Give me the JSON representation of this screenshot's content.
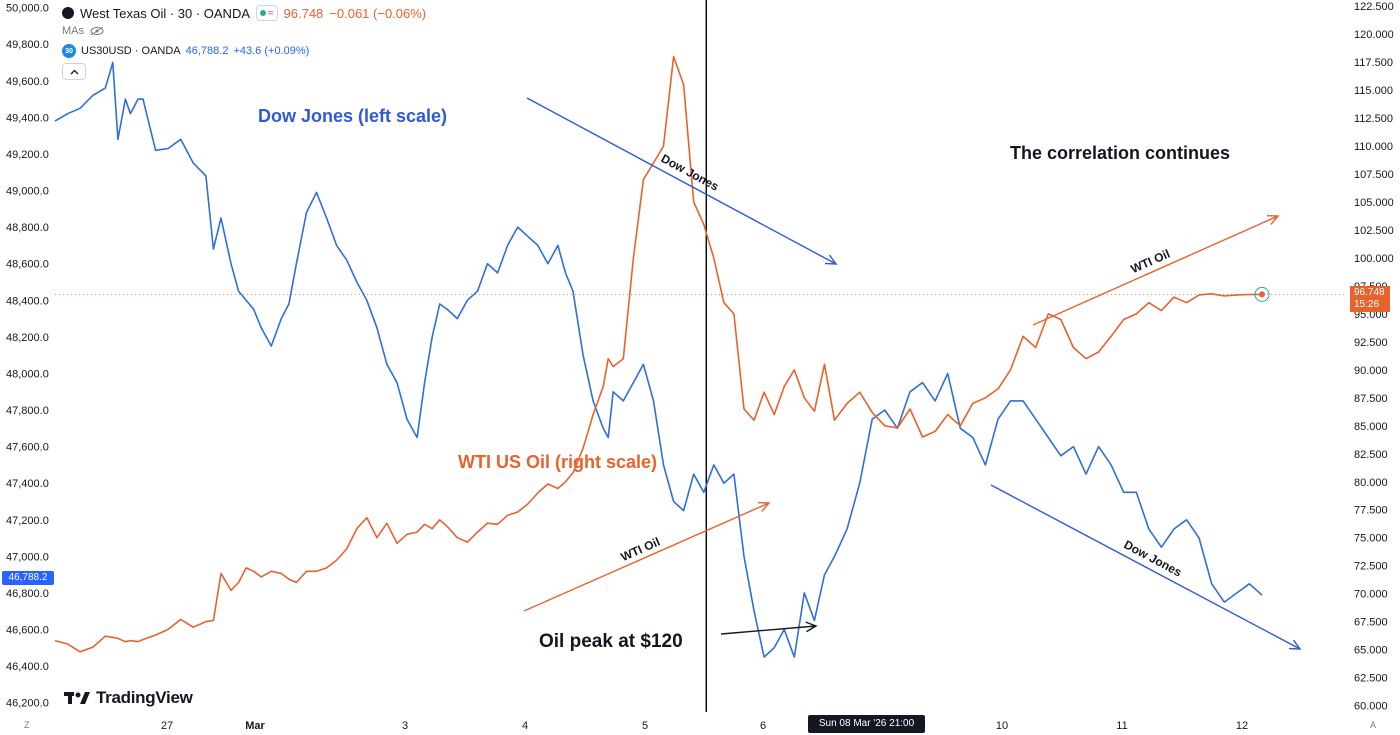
{
  "header": {
    "main_title": "West Texas Oil · 30 · OANDA",
    "main_price": "96.748",
    "main_change": "−0.061 (−0.06%)",
    "mas_label": "MAs",
    "compare_symbol_badge": "30",
    "compare_title": "US30USD · OANDA",
    "compare_value": "46,788.2",
    "compare_change": "+43.6 (+0.09%)",
    "collapse_icon": "chevron-up-icon",
    "badge_icons": [
      "green-dot-icon",
      "approx-icon"
    ],
    "mas_icon": "eye-off-icon"
  },
  "logo_text": "TradingView",
  "price_labels": {
    "left_current": "46,788.2",
    "right_price": "96.748",
    "right_countdown": "15:26"
  },
  "crosshair_label": "Sun 08 Mar '26   21:00",
  "corner_left": "Z",
  "corner_right": "A",
  "annotations": {
    "dow_scale": "Dow Jones (left scale)",
    "wti_scale": "WTI US Oil (right scale)",
    "correlation": "The correlation continues",
    "oil_peak": "Oil peak at $120",
    "arrow_dow_1": "Dow Jones",
    "arrow_wti_1": "WTI Oil",
    "arrow_wti_2": "WTI Oil",
    "arrow_dow_2": "Dow Jones"
  },
  "colors": {
    "dow": "#2f6fd8",
    "wti": "#e8622c",
    "crosshair": "#000000",
    "grid_dotted": "#e8622c",
    "text": "#131722"
  },
  "chart_data": {
    "type": "line",
    "x_ticks": [
      "27",
      "Mar",
      "3",
      "4",
      "5",
      "6",
      "10",
      "11",
      "12"
    ],
    "y_left": {
      "ticks": [
        "50,000.0",
        "49,800.0",
        "49,600.0",
        "49,400.0",
        "49,200.0",
        "49,000.0",
        "48,800.0",
        "48,600.0",
        "48,400.0",
        "48,200.0",
        "48,000.0",
        "47,800.0",
        "47,600.0",
        "47,400.0",
        "47,200.0",
        "47,000.0",
        "46,800.0",
        "46,600.0",
        "46,400.0",
        "46,200.0"
      ],
      "range": [
        46160,
        50020
      ]
    },
    "y_right": {
      "ticks": [
        "122.500",
        "120.000",
        "117.500",
        "115.000",
        "112.500",
        "110.000",
        "107.500",
        "105.000",
        "102.500",
        "100.000",
        "97.500",
        "95.000",
        "92.500",
        "90.000",
        "87.500",
        "85.000",
        "82.500",
        "80.000",
        "77.500",
        "75.000",
        "72.500",
        "70.000",
        "67.500",
        "65.000",
        "62.500",
        "60.000"
      ],
      "range": [
        59.6,
        122.7
      ]
    },
    "series": [
      {
        "name": "US30USD · OANDA",
        "axis": "left",
        "x": [
          0,
          0.5,
          1,
          1.5,
          2,
          2.3,
          2.5,
          2.8,
          3,
          3.3,
          3.5,
          4,
          4.5,
          5,
          5.5,
          6,
          6.3,
          6.6,
          7,
          7.3,
          7.6,
          7.9,
          8.2,
          8.6,
          9,
          9.3,
          9.6,
          10,
          10.4,
          10.8,
          11.2,
          11.6,
          12,
          12.4,
          12.8,
          13.2,
          13.6,
          14,
          14.4,
          14.7,
          15,
          15.3,
          15.6,
          16,
          16.4,
          16.8,
          17.2,
          17.6,
          18,
          18.4,
          18.8,
          19.2,
          19.6,
          20,
          20.3,
          20.6,
          21,
          21.4,
          21.8,
          22,
          22.2,
          22.6,
          23,
          23.4,
          23.8,
          24.2,
          24.6,
          25,
          25.4,
          25.8,
          26.2,
          26.6,
          27,
          27.4,
          27.8,
          28.2,
          28.6,
          29,
          29.4,
          29.8,
          30.2,
          30.6,
          31,
          31.5,
          32,
          32.5,
          33,
          33.5,
          34,
          34.5,
          35,
          35.5,
          36,
          36.5,
          37,
          37.5,
          38,
          38.5,
          39,
          39.5,
          40,
          40.5,
          41,
          41.5,
          42,
          42.5,
          43,
          43.5,
          44,
          44.5,
          45,
          45.5,
          46,
          46.5,
          47,
          47.5,
          48
        ],
        "values": [
          49380,
          49420,
          49450,
          49520,
          49560,
          49700,
          49280,
          49500,
          49420,
          49500,
          49500,
          49220,
          49230,
          49280,
          49150,
          49080,
          48680,
          48850,
          48600,
          48450,
          48400,
          48350,
          48250,
          48150,
          48300,
          48380,
          48600,
          48880,
          48990,
          48850,
          48700,
          48620,
          48500,
          48400,
          48250,
          48050,
          47950,
          47750,
          47650,
          47950,
          48200,
          48380,
          48350,
          48300,
          48400,
          48450,
          48600,
          48550,
          48700,
          48800,
          48750,
          48700,
          48600,
          48700,
          48550,
          48450,
          48100,
          47850,
          47700,
          47650,
          47900,
          47850,
          47950,
          48050,
          47850,
          47500,
          47300,
          47250,
          47450,
          47350,
          47500,
          47400,
          47450,
          47000,
          46700,
          46450,
          46500,
          46600,
          46450,
          46800,
          46650,
          46900,
          47000,
          47150,
          47400,
          47750,
          47800,
          47700,
          47900,
          47950,
          47850,
          48000,
          47700,
          47650,
          47500,
          47750,
          47850,
          47850,
          47750,
          47650,
          47550,
          47600,
          47450,
          47600,
          47500,
          47350,
          47350,
          47150,
          47050,
          47150,
          47200,
          47100,
          46850,
          46750,
          46800,
          46850,
          46788
        ]
      },
      {
        "name": "West Texas Oil · 30 · OANDA",
        "axis": "right",
        "x": [
          0,
          0.5,
          1,
          1.5,
          2,
          2.3,
          2.5,
          2.8,
          3,
          3.3,
          3.5,
          4,
          4.5,
          5,
          5.5,
          6,
          6.3,
          6.6,
          7,
          7.3,
          7.6,
          7.9,
          8.2,
          8.6,
          9,
          9.3,
          9.6,
          10,
          10.4,
          10.8,
          11.2,
          11.6,
          12,
          12.4,
          12.8,
          13.2,
          13.6,
          14,
          14.4,
          14.7,
          15,
          15.3,
          15.6,
          16,
          16.4,
          16.8,
          17.2,
          17.6,
          18,
          18.4,
          18.8,
          19.2,
          19.6,
          20,
          20.3,
          20.6,
          21,
          21.4,
          21.8,
          22,
          22.2,
          22.6,
          23,
          23.4,
          23.8,
          24.2,
          24.6,
          25,
          25.4,
          25.8,
          26.2,
          26.6,
          27,
          27.4,
          27.8,
          28.2,
          28.6,
          29,
          29.4,
          29.8,
          30.2,
          30.6,
          31,
          31.5,
          32,
          32.5,
          33,
          33.5,
          34,
          34.5,
          35,
          35.5,
          36,
          36.5,
          37,
          37.5,
          38,
          38.5,
          39,
          39.5,
          40,
          40.5,
          41,
          41.5,
          42,
          42.5,
          43,
          43.5,
          44,
          44.5,
          45,
          45.5,
          46,
          46.5,
          47,
          47.5,
          48
        ],
        "values": [
          65.8,
          65.5,
          64.8,
          65.2,
          66.2,
          66.1,
          66.0,
          65.7,
          65.8,
          65.7,
          65.9,
          66.3,
          66.8,
          67.7,
          67.0,
          67.5,
          67.6,
          71.8,
          70.3,
          71.0,
          72.3,
          72.0,
          71.5,
          72.0,
          71.8,
          71.3,
          71.0,
          72.0,
          72.0,
          72.3,
          73.0,
          74.0,
          75.8,
          76.8,
          75.0,
          76.3,
          74.5,
          75.3,
          75.5,
          76.2,
          75.8,
          76.6,
          76.0,
          75.0,
          74.6,
          75.5,
          76.3,
          76.2,
          77.0,
          77.3,
          78.0,
          79.0,
          79.8,
          79.4,
          80.0,
          80.8,
          83.0,
          86.0,
          88.5,
          91.0,
          90.3,
          91.0,
          100.0,
          107.0,
          108.5,
          110.0,
          118.0,
          115.5,
          105.0,
          103.0,
          100.0,
          96.0,
          95.0,
          86.5,
          85.5,
          88.0,
          86.0,
          88.5,
          90.0,
          87.5,
          86.3,
          90.5,
          85.5,
          87.0,
          88.0,
          86.2,
          85.0,
          84.8,
          86.5,
          84.0,
          84.5,
          86.0,
          85.0,
          87.0,
          87.5,
          88.3,
          90.0,
          93.0,
          92.0,
          95.0,
          94.5,
          92.0,
          91.0,
          91.6,
          93.0,
          94.5,
          95.0,
          96.0,
          95.3,
          96.5,
          96.0,
          96.7,
          96.8,
          96.6,
          96.7,
          96.74,
          96.748
        ]
      }
    ],
    "crosshair_x": 25.9
  }
}
